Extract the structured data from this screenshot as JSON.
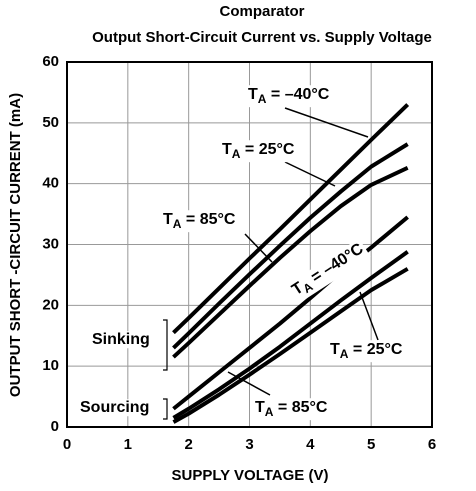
{
  "chart_data": {
    "type": "line",
    "title": "Comparator",
    "subtitle": "Output Short-Circuit Current vs. Supply Voltage",
    "xlabel": "SUPPLY VOLTAGE (V)",
    "ylabel": "OUTPUT SHORT -CIRCUIT CURRENT (mA)",
    "xlim": [
      0,
      6
    ],
    "xticks": [
      0,
      1,
      2,
      3,
      4,
      5,
      6
    ],
    "ylim": [
      0,
      60
    ],
    "yticks": [
      0,
      10,
      20,
      30,
      40,
      50,
      60
    ],
    "grid": true,
    "x": [
      1.75,
      2,
      2.5,
      3,
      3.5,
      4,
      4.5,
      5,
      5.6
    ],
    "series": [
      {
        "color": "#000000",
        "values": [
          15.5,
          17.9,
          22.8,
          27.7,
          32.5,
          37.4,
          42.3,
          47.2,
          53
        ]
      },
      {
        "color": "#000000",
        "values": [
          13,
          15.4,
          20.3,
          25.1,
          29.8,
          34.4,
          38.7,
          42.8,
          46.5
        ]
      },
      {
        "color": "#000000",
        "values": [
          11.5,
          13.8,
          18.5,
          23.2,
          27.8,
          32.2,
          36.3,
          39.8,
          42.6
        ]
      },
      {
        "color": "#000000",
        "values": [
          3,
          5,
          9,
          13,
          17,
          21.2,
          25.5,
          29.5,
          34.5
        ]
      },
      {
        "color": "#000000",
        "values": [
          1.5,
          3,
          6.2,
          9.6,
          13.2,
          17,
          20.8,
          24.5,
          28.8
        ]
      },
      {
        "color": "#000000",
        "values": [
          0.8,
          2.2,
          5.3,
          8.6,
          12,
          15.5,
          19,
          22.5,
          26
        ]
      }
    ],
    "annotations": [
      {
        "text": "T",
        "sub": "A",
        "rest": " = –40°C"
      },
      {
        "text": "T",
        "sub": "A",
        "rest": " = 25°C"
      },
      {
        "text": "T",
        "sub": "A",
        "rest": " = 85°C"
      },
      {
        "text": "T",
        "sub": "A",
        "rest": " = –40°C"
      },
      {
        "text": "T",
        "sub": "A",
        "rest": " = 25°C"
      },
      {
        "text": "T",
        "sub": "A",
        "rest": " = 85°C"
      }
    ],
    "groups": [
      "Sinking",
      "Sourcing"
    ]
  }
}
